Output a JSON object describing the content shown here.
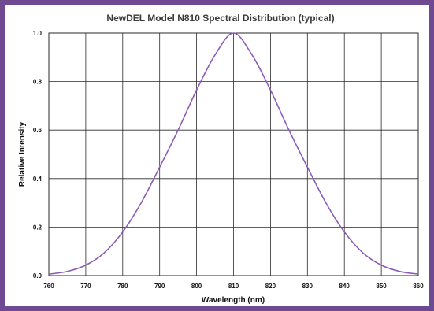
{
  "colors": {
    "frame": "#6f4a93",
    "curve": "#8a5cb8",
    "grid": "#2a2a2a"
  },
  "chart_data": {
    "type": "line",
    "title": "NewDEL Model N810 Spectral Distribution (typical)",
    "xlabel": "Wavelength (nm)",
    "ylabel": "Relative Intensity",
    "xlim": [
      760,
      860
    ],
    "ylim": [
      0,
      1.0
    ],
    "xticks": [
      "760",
      "770",
      "780",
      "790",
      "800",
      "810",
      "820",
      "830",
      "840",
      "850",
      "860"
    ],
    "yticks": [
      "0.0",
      "0.2",
      "0.4",
      "0.6",
      "0.8",
      "1.0"
    ],
    "grid": true,
    "series": [
      {
        "x": [
          760,
          765,
          770,
          775,
          780,
          785,
          790,
          795,
          800,
          805,
          810,
          815,
          820,
          825,
          830,
          835,
          840,
          845,
          850,
          855,
          860
        ],
        "y": [
          0.006,
          0.017,
          0.043,
          0.094,
          0.18,
          0.3,
          0.447,
          0.6,
          0.765,
          0.91,
          1.0,
          0.91,
          0.765,
          0.6,
          0.447,
          0.3,
          0.18,
          0.094,
          0.043,
          0.017,
          0.006
        ]
      }
    ]
  }
}
